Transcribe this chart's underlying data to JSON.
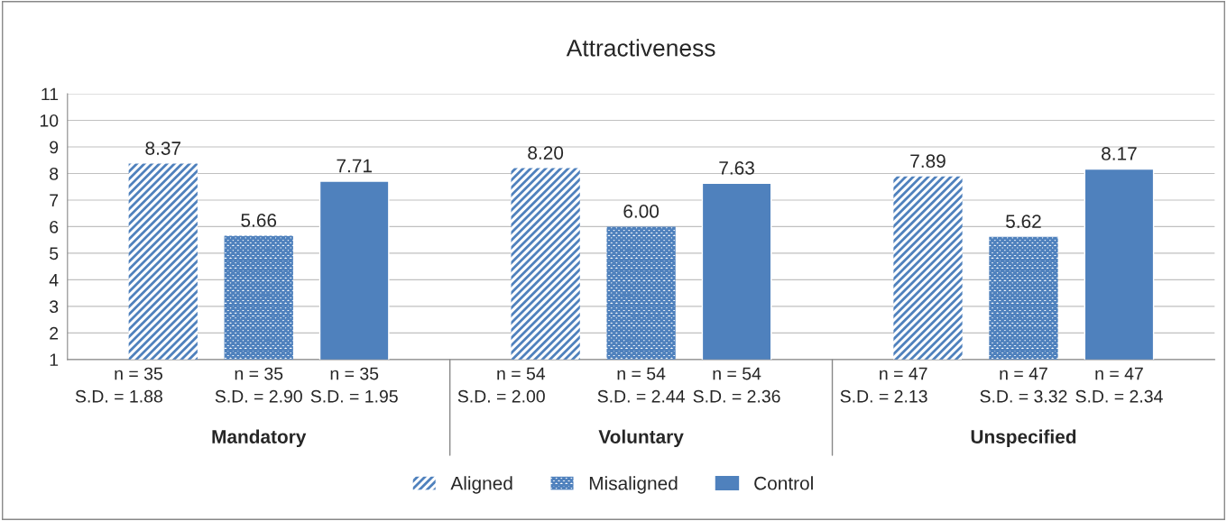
{
  "chart_data": {
    "type": "bar",
    "title": "Attractiveness",
    "categories": [
      "Mandatory",
      "Voluntary",
      "Unspecified"
    ],
    "series": [
      {
        "name": "Aligned",
        "color": "#4f81bd",
        "values": [
          8.37,
          8.2,
          7.89
        ],
        "value_labels": [
          "8.37",
          "8.20",
          "7.89"
        ]
      },
      {
        "name": "Misaligned",
        "color": "#4f81bd",
        "values": [
          5.66,
          6.0,
          5.62
        ],
        "value_labels": [
          "5.66",
          "6.00",
          "5.62"
        ]
      },
      {
        "name": "Control",
        "color": "#4f81bd",
        "values": [
          7.71,
          7.63,
          8.17
        ],
        "value_labels": [
          "7.71",
          "7.63",
          "8.17"
        ]
      }
    ],
    "ylim": [
      1,
      11
    ],
    "yticks": [
      1,
      2,
      3,
      4,
      5,
      6,
      7,
      8,
      9,
      10,
      11
    ],
    "grid": "y",
    "legend": "bottom",
    "annotations": [
      "n = 35\nS.D. = 1.88",
      "n = 35\nS.D. = 2.90",
      "n = 35\nS.D. = 1.95",
      "n = 54\nS.D. = 2.00",
      "n = 54\nS.D. = 2.44",
      "n = 54\nS.D. = 2.36",
      "n = 47\nS.D. = 2.13",
      "n = 47\nS.D. = 3.32",
      "n = 47\nS.D. = 2.34"
    ]
  }
}
